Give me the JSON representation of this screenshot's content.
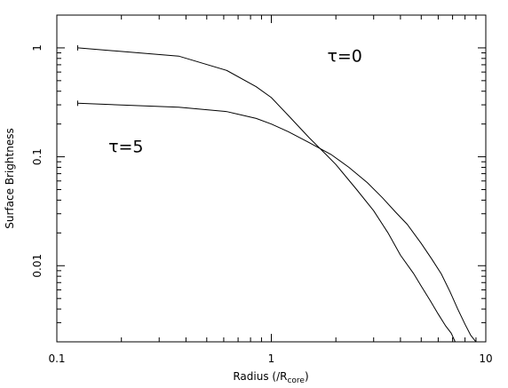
{
  "chart_data": {
    "type": "line",
    "title": "",
    "xlabel": "Radius (/R",
    "xlabel_sub": "core",
    "xlabel_close": ")",
    "ylabel": "Surface Brightness",
    "xscale": "log",
    "yscale": "log",
    "xlim": [
      0.1,
      10
    ],
    "ylim": [
      0.002,
      2
    ],
    "grid": false,
    "xticks": [
      {
        "value": 0.1,
        "label": "0.1"
      },
      {
        "value": 1,
        "label": "1"
      },
      {
        "value": 10,
        "label": "10"
      }
    ],
    "yticks": [
      {
        "value": 0.01,
        "label": "0.01"
      },
      {
        "value": 0.1,
        "label": "0.1"
      },
      {
        "value": 1,
        "label": "1"
      }
    ],
    "series": [
      {
        "name": "",
        "x": [
          0.125,
          0.37,
          0.62,
          0.85,
          1.0,
          1.2,
          1.5,
          1.8,
          2.0,
          2.5,
          3.0,
          3.5,
          4.0,
          4.6,
          5.0,
          5.5,
          6.0,
          6.5,
          6.9,
          7.2
        ],
        "y": [
          1.0,
          0.84,
          0.62,
          0.44,
          0.35,
          0.24,
          0.15,
          0.105,
          0.085,
          0.05,
          0.032,
          0.02,
          0.0125,
          0.0085,
          0.0065,
          0.0048,
          0.0036,
          0.0028,
          0.0024,
          0.002
        ]
      },
      {
        "name": "",
        "x": [
          0.125,
          0.37,
          0.62,
          0.85,
          1.0,
          1.2,
          1.5,
          1.9,
          2.3,
          2.8,
          3.3,
          3.8,
          4.3,
          5.0,
          5.6,
          6.2,
          6.8,
          7.4,
          8.0,
          8.5,
          9.0
        ],
        "y": [
          0.31,
          0.285,
          0.26,
          0.225,
          0.2,
          0.17,
          0.135,
          0.105,
          0.08,
          0.058,
          0.042,
          0.031,
          0.024,
          0.016,
          0.0115,
          0.0084,
          0.0058,
          0.004,
          0.0029,
          0.0023,
          0.002
        ]
      }
    ],
    "annotations": [
      {
        "label": "τ=0",
        "x": 2.2,
        "y": 0.75
      },
      {
        "label": "τ=5",
        "x": 0.21,
        "y": 0.11
      }
    ]
  }
}
